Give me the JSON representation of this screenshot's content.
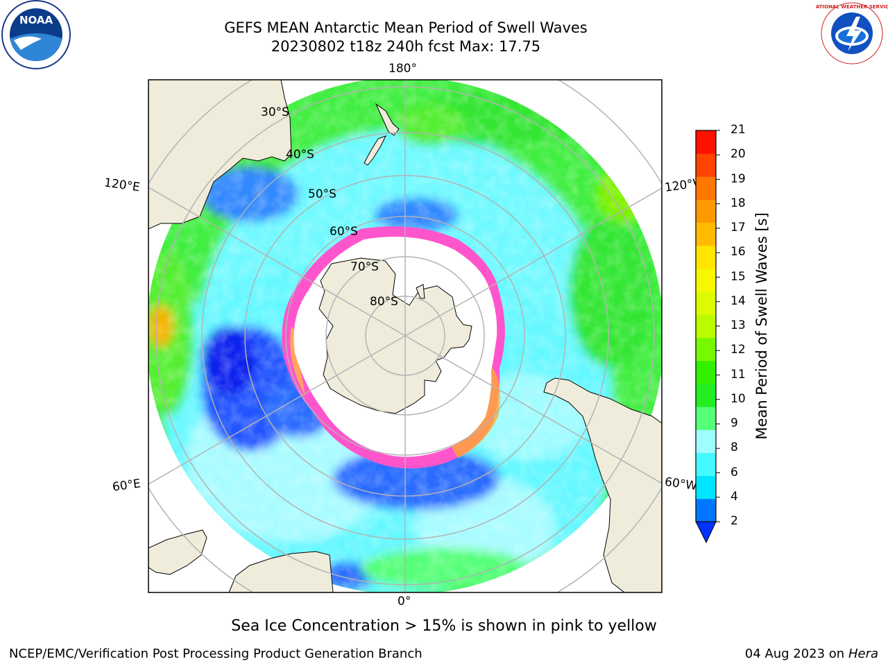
{
  "title": {
    "line1": "GEFS MEAN Antarctic Mean Period of Swell Waves",
    "line2": "20230802 t18z 240h fcst   Max: 17.75"
  },
  "map": {
    "projection": "south-polar-stereographic",
    "longitude_labels": {
      "top": "180°",
      "bottom": "0°",
      "upper_left": "120°E",
      "upper_right": "120°W",
      "lower_left": "60°E",
      "lower_right": "60°W"
    },
    "latitude_labels": [
      "30°S",
      "40°S",
      "50°S",
      "60°S",
      "70°S",
      "80°S"
    ],
    "colors": {
      "land": "#efecdc",
      "ice_mask": "#ffffff",
      "ice_edge": "#ff44cc",
      "grid": "#b3b3b3"
    }
  },
  "colorbar": {
    "label": "Mean Period of Swell Waves [s]",
    "ticks": [
      "21",
      "20",
      "19",
      "18",
      "17",
      "16",
      "15",
      "14",
      "13",
      "12",
      "11",
      "10",
      "9",
      "8",
      "6",
      "4",
      "2"
    ],
    "colors_bottom_to_top": [
      "#0077ff",
      "#00e5ff",
      "#44f9ff",
      "#9ffcff",
      "#55ff77",
      "#22ee22",
      "#33f000",
      "#77f800",
      "#bbfb00",
      "#ddfb00",
      "#f7f700",
      "#ffe500",
      "#ffbb00",
      "#ff9900",
      "#ff7700",
      "#ff4400",
      "#ff1100"
    ],
    "extend_color": "#0033ff"
  },
  "note": "Sea Ice Concentration > 15% is shown in pink to yellow",
  "footer": {
    "credit": "NCEP/EMC/Verification Post Processing Product Generation Branch",
    "date": "04 Aug 2023 on",
    "machine": "Hera"
  },
  "logos": {
    "noaa_text": "NOAA",
    "nws_text": "NATIONAL WEATHER SERVICE"
  }
}
